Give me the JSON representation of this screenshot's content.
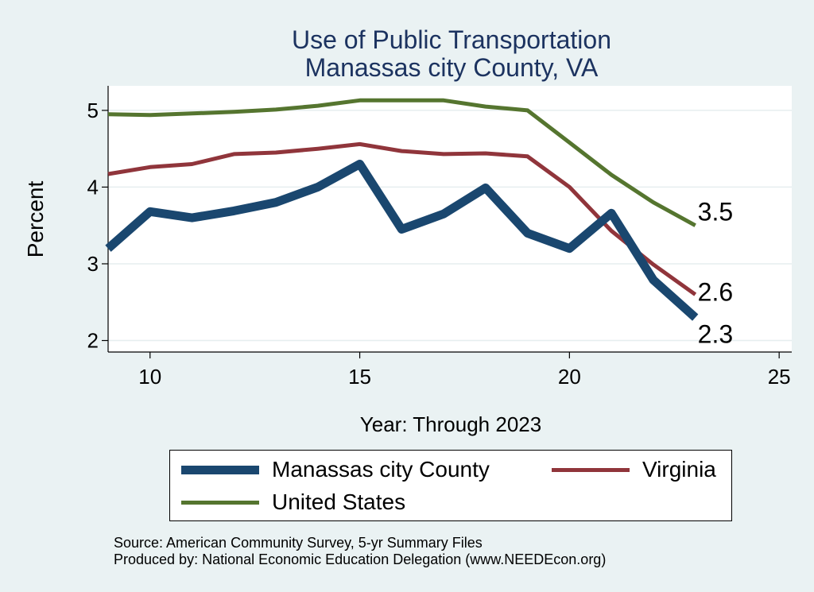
{
  "chart_data": {
    "type": "line",
    "title": "Use of Public Transportation",
    "subtitle": "Manassas city County, VA",
    "xlabel": "Year: Through 2023",
    "ylabel": "Percent",
    "xlim": [
      9,
      25.3
    ],
    "ylim": [
      1.85,
      5.32
    ],
    "xticks": [
      10,
      15,
      20,
      25
    ],
    "yticks": [
      2,
      3,
      4,
      5
    ],
    "x": [
      9,
      10,
      11,
      12,
      13,
      14,
      15,
      16,
      17,
      18,
      19,
      20,
      21,
      22,
      23
    ],
    "series": [
      {
        "name": "Manassas city County",
        "color": "#1a476f",
        "values": [
          3.2,
          3.68,
          3.6,
          3.69,
          3.8,
          4.0,
          4.3,
          3.45,
          3.65,
          3.99,
          3.4,
          3.2,
          3.66,
          2.79,
          2.3
        ],
        "end_label": "2.3"
      },
      {
        "name": "Virginia",
        "color": "#90353b",
        "values": [
          4.17,
          4.26,
          4.3,
          4.43,
          4.45,
          4.5,
          4.56,
          4.47,
          4.43,
          4.44,
          4.4,
          4.0,
          3.43,
          2.99,
          2.6
        ],
        "end_label": "2.6"
      },
      {
        "name": "United States",
        "color": "#55752f",
        "values": [
          4.95,
          4.94,
          4.96,
          4.98,
          5.01,
          5.06,
          5.13,
          5.13,
          5.13,
          5.05,
          5.0,
          4.58,
          4.16,
          3.8,
          3.5
        ],
        "end_label": "3.5"
      }
    ]
  },
  "source_note": "Source: American Community Survey, 5-yr Summary Files",
  "produced_note": "Produced by: National Economic Education Delegation (www.NEEDEcon.org)"
}
